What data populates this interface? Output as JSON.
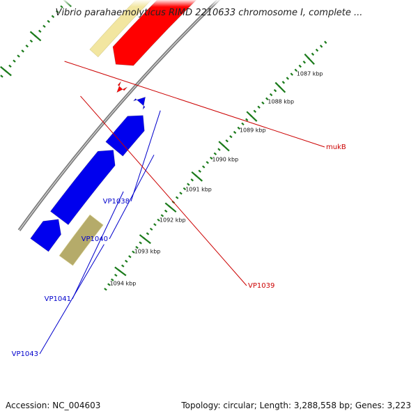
{
  "title": "Vibrio parahaemolyticus RIMD 2210633 chromosome I, complete ...",
  "footer": {
    "accession": "Accession: NC_004603",
    "topology": "Topology: circular; Length: 3,288,558 bp; Genes: 3,223"
  },
  "colors": {
    "backbone": "#7a7a7a",
    "forward_cds": "#ff0000",
    "reverse_cds": "#0000ee",
    "forward_gene": "#f2e6a0",
    "reverse_gene": "#b5ab6a",
    "tick": "#1a7a1a",
    "forward_label": "#cc0000",
    "reverse_label": "#0000cc"
  },
  "ticks": [
    {
      "label": "1087 kbp"
    },
    {
      "label": "1088 kbp"
    },
    {
      "label": "1089 kbp"
    },
    {
      "label": "1090 kbp"
    },
    {
      "label": "1091 kbp"
    },
    {
      "label": "1092 kbp"
    },
    {
      "label": "1093 kbp"
    },
    {
      "label": "1094 kbp"
    }
  ],
  "genes": [
    {
      "name": "mukB",
      "strand": "forward",
      "icon": "arrow-feature"
    },
    {
      "name": "VP1038",
      "strand": "reverse",
      "icon": "arrow-feature"
    },
    {
      "name": "VP1039",
      "strand": "forward",
      "icon": "arrow-feature"
    },
    {
      "name": "VP1040",
      "strand": "reverse",
      "icon": "arrow-feature"
    },
    {
      "name": "VP1041",
      "strand": "reverse",
      "icon": "arrow-feature"
    },
    {
      "name": "VP1043",
      "strand": "reverse",
      "icon": "arrow-feature"
    }
  ]
}
